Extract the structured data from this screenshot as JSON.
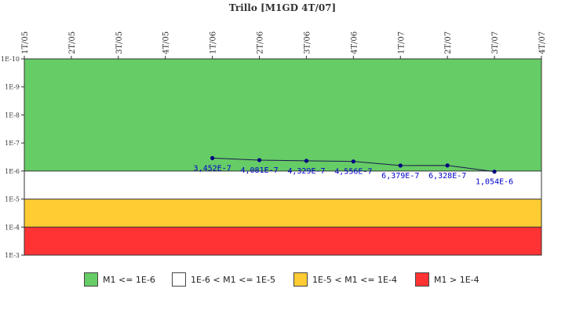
{
  "chart_data": {
    "type": "line",
    "title": "Trillo [M1GD 4T/07]",
    "x_categories": [
      "1T/05",
      "2T/05",
      "3T/05",
      "4T/05",
      "1T/06",
      "2T/06",
      "3T/06",
      "4T/06",
      "1T/07",
      "2T/07",
      "3T/07",
      "4T/07"
    ],
    "y_scale": "log",
    "y_ticks": [
      "1E-10",
      "1E-9",
      "1E-8",
      "1E-7",
      "1E-6",
      "1E-5",
      "1E-4",
      "1E-3"
    ],
    "y_axis_inverted": true,
    "y_range": [
      "1E-10",
      "1E-3"
    ],
    "bands": [
      {
        "label": "M1 <= 1E-6",
        "from": 1e-10,
        "to": 1e-06,
        "color": "#66cc66"
      },
      {
        "label": "1E-6 < M1 <= 1E-5",
        "from": 1e-06,
        "to": 1e-05,
        "color": "#ffffff"
      },
      {
        "label": "1E-5 < M1 <= 1E-4",
        "from": 1e-05,
        "to": 0.0001,
        "color": "#ffcc33"
      },
      {
        "label": "M1 > 1E-4",
        "from": 0.0001,
        "to": 0.001,
        "color": "#ff3333"
      }
    ],
    "series": [
      {
        "color": "#000080",
        "x": [
          "1T/06",
          "2T/06",
          "3T/06",
          "4T/06",
          "1T/07",
          "2T/07",
          "3T/07"
        ],
        "values": [
          3.452e-07,
          4.081e-07,
          4.329e-07,
          4.556e-07,
          6.379e-07,
          6.328e-07,
          1.054e-06
        ],
        "labels": [
          "3,452E-7",
          "4,081E-7",
          "4,329E-7",
          "4,556E-7",
          "6,379E-7",
          "6,328E-7",
          "1,054E-6"
        ]
      }
    ],
    "grid": false,
    "legend_position": "bottom"
  }
}
